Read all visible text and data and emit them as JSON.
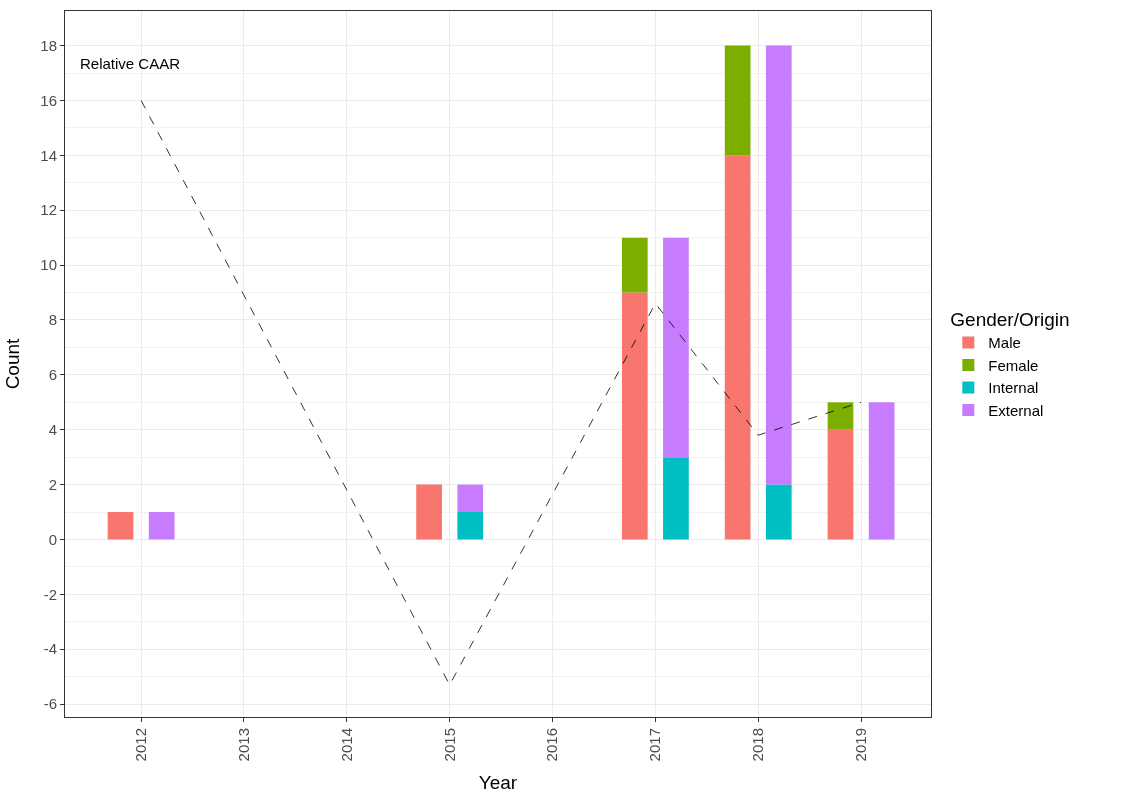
{
  "chart_data": {
    "type": "bar",
    "stacked": true,
    "xlabel": "Year",
    "ylabel": "Count",
    "legend_title": "Gender/Origin",
    "xlim": [
      2011.26,
      2019.68
    ],
    "xticks": [
      2012,
      2013,
      2014,
      2015,
      2016,
      2017,
      2018,
      2019
    ],
    "ylim": [
      -6.47,
      19.26
    ],
    "yticks": [
      -6,
      -4,
      -2,
      0,
      2,
      4,
      6,
      8,
      10,
      12,
      14,
      16,
      18
    ],
    "grid": true,
    "legend": "right",
    "annotations": [
      "Relative CAAR"
    ],
    "x": [
      2011.8,
      2012.2,
      2014.8,
      2015.2,
      2016.8,
      2017.2,
      2017.8,
      2018.2,
      2018.8,
      2019.2
    ],
    "series": [
      {
        "name": "Male",
        "color": "#f8766d",
        "values": [
          1,
          null,
          2,
          null,
          9,
          null,
          14,
          null,
          4,
          null
        ]
      },
      {
        "name": "Female",
        "color": "#7cae00",
        "values": [
          null,
          null,
          null,
          null,
          2,
          null,
          4,
          null,
          1,
          null
        ]
      },
      {
        "name": "Internal",
        "color": "#00bfc4",
        "values": [
          null,
          null,
          null,
          1,
          null,
          3,
          null,
          2,
          null,
          null
        ]
      },
      {
        "name": "External",
        "color": "#c77cff",
        "values": [
          null,
          1,
          null,
          1,
          null,
          8,
          null,
          16,
          null,
          5
        ]
      },
      {
        "type": "line",
        "color": "#000000",
        "line_style": "dashed",
        "marker": "none",
        "x": [
          2012,
          2015,
          2017,
          2018,
          2019
        ],
        "values": [
          16,
          -5.3,
          8.6,
          3.8,
          5
        ]
      }
    ]
  }
}
